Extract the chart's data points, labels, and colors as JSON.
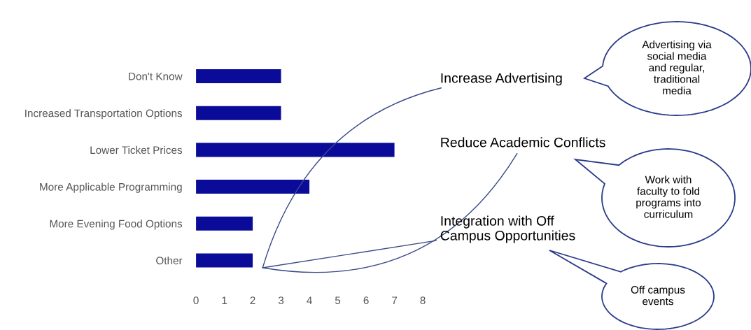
{
  "chart_data": {
    "type": "bar",
    "orientation": "horizontal",
    "categories": [
      "Don't Know",
      "Increased Transportation Options",
      "Lower Ticket Prices",
      "More Applicable Programming",
      "More Evening Food Options",
      "Other"
    ],
    "values": [
      3,
      3,
      7,
      4,
      2,
      2
    ],
    "color": "#0b0b99",
    "xlim": [
      0,
      8
    ],
    "xticks": [
      0,
      1,
      2,
      3,
      4,
      5,
      6,
      7,
      8
    ],
    "grid": false,
    "annotations": [
      "Increase Advertising",
      "Reduce Academic Conflicts",
      "Integration with Off\nCampus Opportunities",
      "Advertising via\nsocial media\nand regular,\ntraditional\nmedia",
      "Work with\nfaculty to fold\nprograms into\ncurriculum",
      "Off campus\nevents"
    ]
  }
}
